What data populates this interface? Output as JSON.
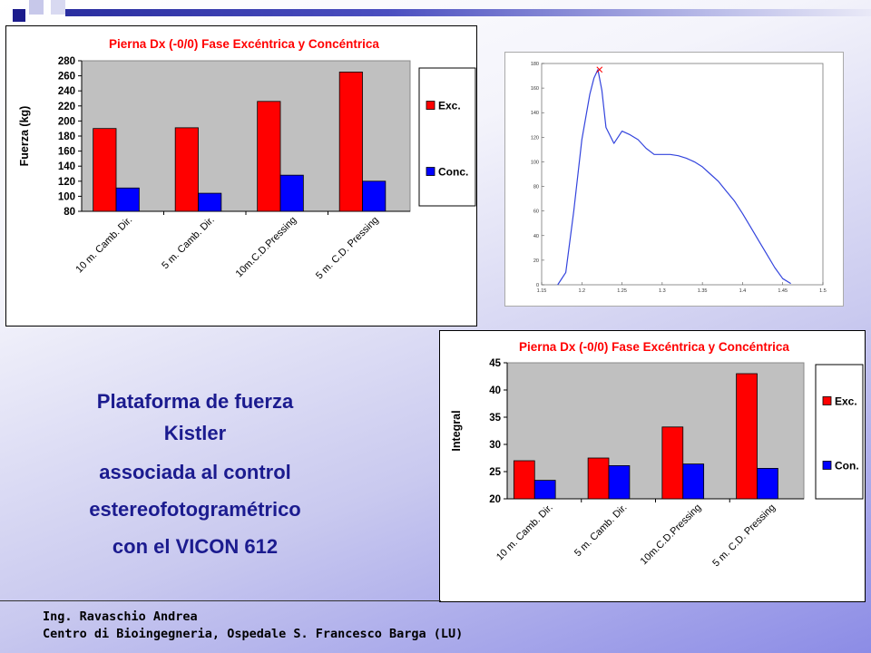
{
  "caption": {
    "line1": "Plataforma de fuerza",
    "line2": "Kistler",
    "line3": "associada al control",
    "line4": "estereofotogramétrico",
    "line5": "con el VICON 612"
  },
  "footer": {
    "author": "Ing. Ravaschio Andrea",
    "institution": "Centro di Bioingegneria, Ospedale S. Francesco Barga (LU)"
  },
  "colors": {
    "exc": "#ff0000",
    "conc": "#0000ff",
    "plot_bg": "#c0c0c0",
    "title": "#ff0000",
    "curve": "#3344dd"
  },
  "chart_data": [
    {
      "type": "bar",
      "title": "Pierna Dx (-0/0) Fase Excéntrica y Concéntrica",
      "ylabel": "Fuerza (kg)",
      "xlabel": "",
      "categories": [
        "10 m. Camb. Dir.",
        "5 m. Camb. Dir.",
        "10m.C.D.Pressing",
        "5 m. C.D. Pressing"
      ],
      "ylim": [
        80,
        280
      ],
      "yticks": [
        80,
        100,
        120,
        140,
        160,
        180,
        200,
        220,
        240,
        260,
        280
      ],
      "grid": false,
      "legend": "right",
      "series": [
        {
          "name": "Exc.",
          "values": [
            190,
            191,
            226,
            265
          ]
        },
        {
          "name": "Conc.",
          "values": [
            111,
            104,
            128,
            120
          ]
        }
      ]
    },
    {
      "type": "line",
      "title": "",
      "xlabel": "",
      "ylabel": "",
      "xlim": [
        1.15,
        1.5
      ],
      "ylim": [
        0,
        180
      ],
      "xticks": [
        "1.15",
        "1.2",
        "1.25",
        "1.3",
        "1.35",
        "1.4",
        "1.45",
        "1.5"
      ],
      "xtick_values": [
        1.15,
        1.2,
        1.25,
        1.3,
        1.35,
        1.4,
        1.45,
        1.5
      ],
      "yticks": [
        0,
        20,
        40,
        60,
        80,
        100,
        120,
        140,
        160,
        180
      ],
      "series": [
        {
          "name": "",
          "x": [
            1.17,
            1.18,
            1.19,
            1.2,
            1.21,
            1.215,
            1.22,
            1.225,
            1.23,
            1.24,
            1.25,
            1.26,
            1.27,
            1.28,
            1.29,
            1.3,
            1.31,
            1.32,
            1.33,
            1.34,
            1.35,
            1.36,
            1.37,
            1.38,
            1.39,
            1.4,
            1.41,
            1.42,
            1.43,
            1.44,
            1.45,
            1.46
          ],
          "y": [
            0,
            10,
            60,
            118,
            155,
            168,
            175,
            158,
            128,
            115,
            125,
            122,
            118,
            111,
            106,
            106,
            106,
            105,
            103,
            100,
            96,
            90,
            84,
            76,
            68,
            58,
            47,
            36,
            25,
            14,
            5,
            1
          ]
        }
      ],
      "peak_marker": {
        "x": 1.222,
        "y": 175
      }
    },
    {
      "type": "bar",
      "title": "Pierna Dx (-0/0) Fase Excéntrica y Concéntrica",
      "ylabel": "Integral",
      "xlabel": "",
      "categories": [
        "10 m. Camb. Dir.",
        "5 m. Camb. Dir.",
        "10m.C.D.Pressing",
        "5 m. C.D. Pressing"
      ],
      "ylim": [
        20,
        45
      ],
      "yticks": [
        20,
        25,
        30,
        35,
        40,
        45
      ],
      "grid": false,
      "legend": "right",
      "series": [
        {
          "name": "Exc.",
          "values": [
            27,
            27.5,
            33.2,
            43
          ]
        },
        {
          "name": "Con.",
          "values": [
            23.4,
            26.1,
            26.4,
            25.6
          ]
        }
      ]
    }
  ]
}
